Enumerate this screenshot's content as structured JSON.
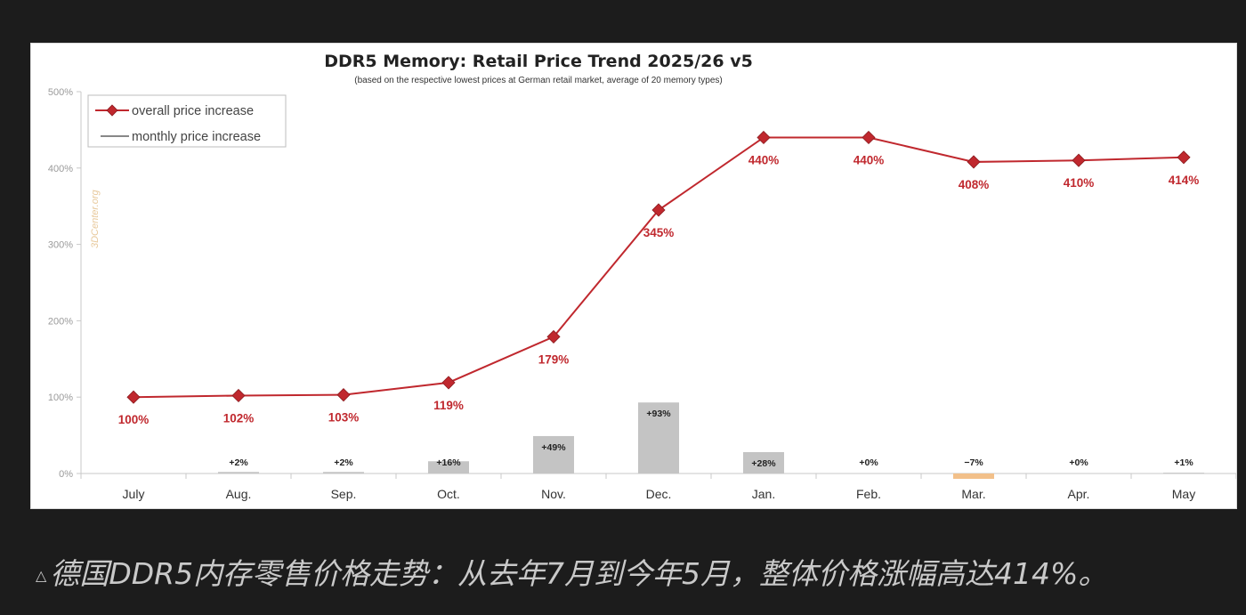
{
  "chart_data": {
    "type": "line",
    "title": "DDR5 Memory: Retail Price Trend 2025/26 v5",
    "subtitle": "(based on the respective lowest prices at German retail market, average of 20 memory types)",
    "categories": [
      "July",
      "Aug.",
      "Sep.",
      "Oct.",
      "Nov.",
      "Dec.",
      "Jan.",
      "Feb.",
      "Mar.",
      "Apr.",
      "May"
    ],
    "ylim": [
      0,
      500
    ],
    "yticks": [
      0,
      100,
      200,
      300,
      400,
      500
    ],
    "ytick_labels": [
      "0%",
      "100%",
      "200%",
      "300%",
      "400%",
      "500%"
    ],
    "grid": false,
    "legend_position": "top-left",
    "watermark": "3DCenter.org",
    "series": [
      {
        "name": "overall price increase",
        "kind": "line",
        "color": "#c0282e",
        "marker": "diamond",
        "values": [
          100,
          102,
          103,
          119,
          179,
          345,
          440,
          440,
          408,
          410,
          414
        ],
        "labels": [
          "100%",
          "102%",
          "103%",
          "119%",
          "179%",
          "345%",
          "440%",
          "440%",
          "408%",
          "410%",
          "414%"
        ]
      },
      {
        "name": "monthly price increase",
        "kind": "bar",
        "color": "#c4c4c4",
        "negative_color": "#f2c08a",
        "values": [
          null,
          2,
          2,
          16,
          49,
          93,
          28,
          0,
          -7,
          0,
          1
        ],
        "labels": [
          "",
          "+2%",
          "+2%",
          "+16%",
          "+49%",
          "+93%",
          "+28%",
          "+0%",
          "−7%",
          "+0%",
          "+1%"
        ]
      }
    ]
  },
  "caption": {
    "marker": "△",
    "text": "德国DDR5内存零售价格走势：从去年7月到今年5月，整体价格涨幅高达414%。"
  }
}
